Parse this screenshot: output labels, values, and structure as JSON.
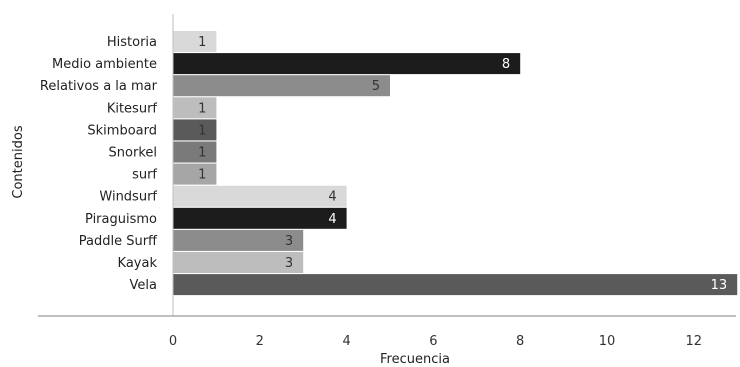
{
  "chart_data": {
    "type": "bar",
    "orientation": "horizontal",
    "categories": [
      "Historia",
      "Medio ambiente",
      "Relativos a la mar",
      "Kitesurf",
      "Skimboard",
      "Snorkel",
      "surf",
      "Windsurf",
      "Piraguismo",
      "Paddle Surff",
      "Kayak",
      "Vela"
    ],
    "values": [
      1,
      8,
      5,
      1,
      1,
      1,
      1,
      4,
      4,
      3,
      3,
      13
    ],
    "bar_colors": [
      "#d9d9d9",
      "#1c1c1c",
      "#8c8c8c",
      "#bdbdbd",
      "#5a5a5a",
      "#7a7a7a",
      "#a6a6a6",
      "#d9d9d9",
      "#1c1c1c",
      "#8c8c8c",
      "#bdbdbd",
      "#5a5a5a"
    ],
    "label_colors": [
      "#333333",
      "#ffffff",
      "#333333",
      "#333333",
      "#333333",
      "#333333",
      "#333333",
      "#333333",
      "#ffffff",
      "#333333",
      "#333333",
      "#ffffff"
    ],
    "xlabel": "Frecuencia",
    "ylabel": "Contenidos",
    "xlim": [
      0,
      13
    ],
    "xticks": [
      0,
      2,
      4,
      6,
      8,
      10,
      12
    ],
    "grid": false,
    "legend": "none"
  }
}
